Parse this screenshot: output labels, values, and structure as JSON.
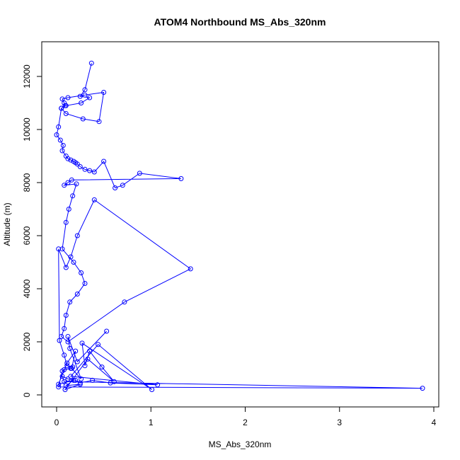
{
  "chart_data": {
    "type": "line",
    "title": "ATOM4 Northbound MS_Abs_320nm",
    "xlabel": "MS_Abs_320nm",
    "ylabel": "Altitude (m)",
    "xlim": [
      0,
      4
    ],
    "ylim": [
      0,
      12500
    ],
    "x_ticks": [
      0,
      1,
      2,
      3,
      4
    ],
    "y_ticks": [
      0,
      2000,
      4000,
      6000,
      8000,
      10000,
      12000
    ],
    "grid": false,
    "legend": "none",
    "colors": {
      "series": "#0000ff",
      "axis": "#000000",
      "background": "#ffffff"
    },
    "marker": "open-circle",
    "series": [
      {
        "x": [
          0.37,
          0.3,
          0.25,
          0.35,
          0.26,
          0.1,
          0.05,
          0.1,
          0.28,
          0.45,
          0.5,
          0.3,
          0.12,
          0.06,
          0.08,
          0.09,
          0.05,
          0.02,
          0.0,
          0.04,
          0.07,
          0.06,
          0.1,
          0.12,
          0.15,
          0.18,
          0.2,
          0.22,
          0.25,
          0.3,
          0.35,
          0.4,
          0.5,
          0.62,
          0.7,
          0.88,
          1.32,
          0.16,
          0.12,
          0.08,
          0.21,
          0.17,
          0.13,
          0.1,
          0.06,
          0.18,
          0.26,
          0.3,
          0.22,
          0.14,
          0.1,
          0.08,
          0.05,
          0.12,
          0.72,
          1.42,
          0.4,
          0.22,
          0.15,
          0.1,
          0.02,
          0.03,
          0.08,
          0.11,
          0.17,
          0.15,
          0.08,
          0.06,
          0.02,
          3.88,
          0.08,
          0.06,
          0.12,
          0.2,
          0.25,
          0.38,
          0.57,
          1.07,
          0.15,
          0.44,
          1.01,
          0.27,
          0.3,
          0.35,
          0.48,
          0.61,
          0.33,
          0.09,
          0.25,
          0.1,
          0.18,
          0.02,
          0.11,
          0.2,
          0.16,
          0.26,
          0.14,
          0.12,
          0.22,
          0.53
        ],
        "y": [
          12500,
          11500,
          11250,
          11200,
          11000,
          10900,
          10800,
          10600,
          10400,
          10300,
          11400,
          11300,
          11200,
          11150,
          11000,
          10900,
          10800,
          10100,
          9800,
          9600,
          9400,
          9200,
          9000,
          8900,
          8850,
          8800,
          8750,
          8700,
          8600,
          8500,
          8450,
          8400,
          8800,
          7800,
          7900,
          8350,
          8150,
          8100,
          8000,
          7900,
          7950,
          7500,
          7000,
          6500,
          5500,
          5000,
          4600,
          4200,
          3800,
          3500,
          3000,
          2500,
          2200,
          2000,
          3500,
          4750,
          7350,
          6000,
          5200,
          4800,
          5500,
          2050,
          1500,
          1100,
          1050,
          1000,
          950,
          900,
          300,
          250,
          500,
          700,
          600,
          550,
          450,
          550,
          450,
          380,
          700,
          1900,
          200,
          1950,
          1100,
          1650,
          1050,
          500,
          1350,
          200,
          400,
          350,
          550,
          400,
          1200,
          1650,
          1000,
          600,
          1750,
          2200,
          1250,
          2400
        ]
      }
    ]
  }
}
